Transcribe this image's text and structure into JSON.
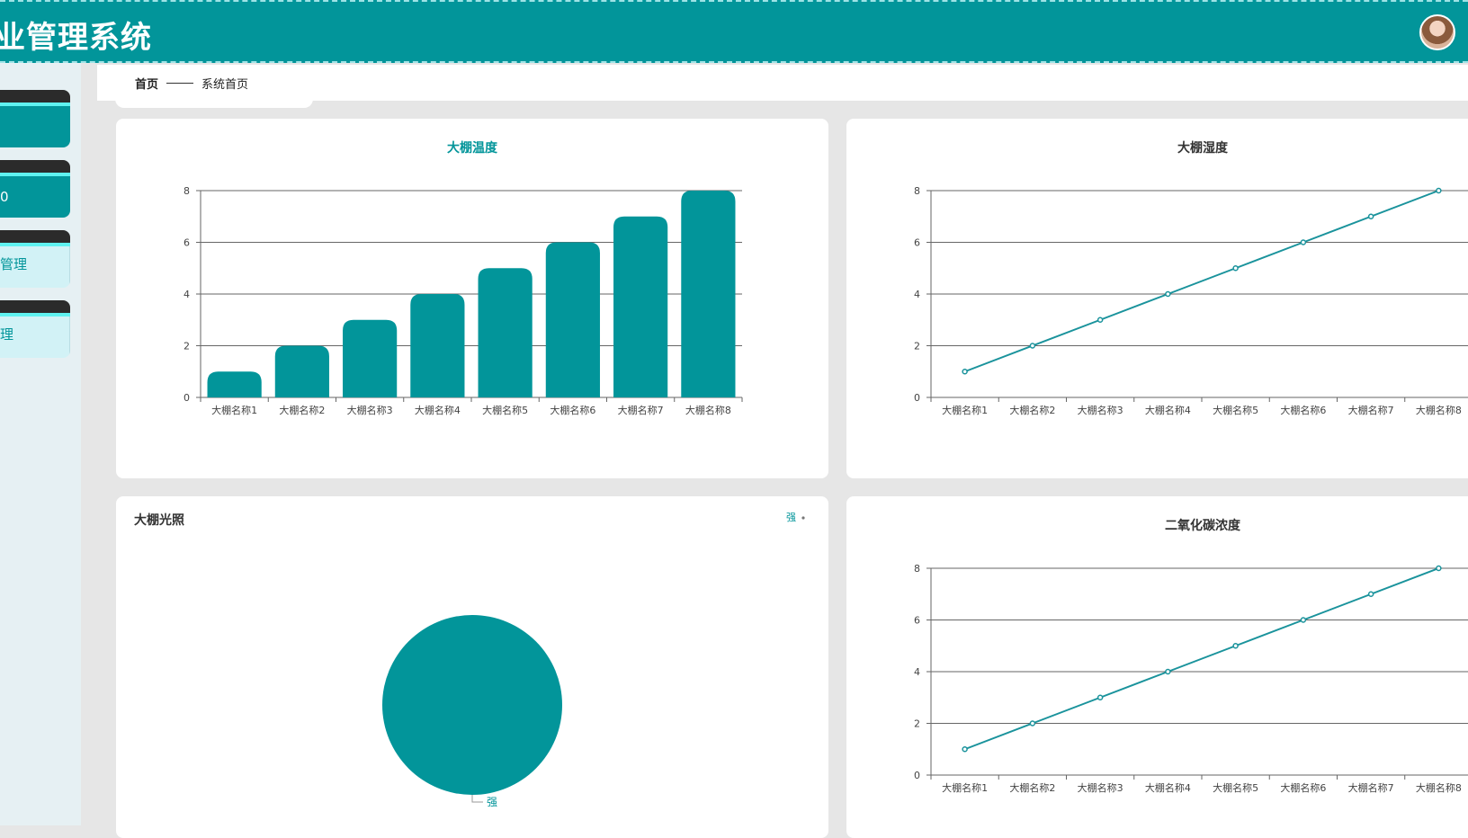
{
  "header": {
    "title": "业管理系统",
    "avatar_icon": "user-avatar"
  },
  "sidebar": {
    "items": [
      {
        "label": ""
      },
      {
        "label": "0"
      },
      {
        "label": "管理"
      },
      {
        "label": "理"
      }
    ]
  },
  "breadcrumb": {
    "home": "首页",
    "current": "系统首页"
  },
  "colors": {
    "primary": "#02959a",
    "accent": "#5ff2f0",
    "sidebar_bg": "#e6f0f3",
    "page_bg": "#e6e6e6"
  },
  "charts": {
    "temperature": {
      "title": "大棚温度"
    },
    "humidity": {
      "title": "大棚湿度"
    },
    "light": {
      "title": "大棚光照",
      "legend_label": "强",
      "slice_label": "强"
    },
    "co2": {
      "title": "二氧化碳浓度"
    }
  },
  "chart_data": [
    {
      "type": "bar",
      "title": "大棚温度",
      "categories": [
        "大棚名称1",
        "大棚名称2",
        "大棚名称3",
        "大棚名称4",
        "大棚名称5",
        "大棚名称6",
        "大棚名称7",
        "大棚名称8"
      ],
      "values": [
        1,
        2,
        3,
        4,
        5,
        6,
        7,
        8
      ],
      "ylim": [
        0,
        8
      ],
      "yticks": [
        0,
        2,
        4,
        6,
        8
      ],
      "grid": true,
      "color": "#02959a"
    },
    {
      "type": "line",
      "title": "大棚湿度",
      "categories": [
        "大棚名称1",
        "大棚名称2",
        "大棚名称3",
        "大棚名称4",
        "大棚名称5",
        "大棚名称6",
        "大棚名称7",
        "大棚名称8"
      ],
      "values": [
        1,
        2,
        3,
        4,
        5,
        6,
        7,
        8
      ],
      "ylim": [
        0,
        8
      ],
      "yticks": [
        0,
        2,
        4,
        6,
        8
      ],
      "grid": true,
      "color": "#1a939c"
    },
    {
      "type": "pie",
      "title": "大棚光照",
      "slices": [
        {
          "label": "强",
          "value": 100
        }
      ],
      "legend": "top-right",
      "color": "#02959a"
    },
    {
      "type": "line",
      "title": "二氧化碳浓度",
      "categories": [
        "大棚名称1",
        "大棚名称2",
        "大棚名称3",
        "大棚名称4",
        "大棚名称5",
        "大棚名称6",
        "大棚名称7",
        "大棚名称8"
      ],
      "values": [
        1,
        2,
        3,
        4,
        5,
        6,
        7,
        8
      ],
      "ylim": [
        0,
        8
      ],
      "yticks": [
        0,
        2,
        4,
        6,
        8
      ],
      "grid": true,
      "color": "#1a939c"
    }
  ]
}
